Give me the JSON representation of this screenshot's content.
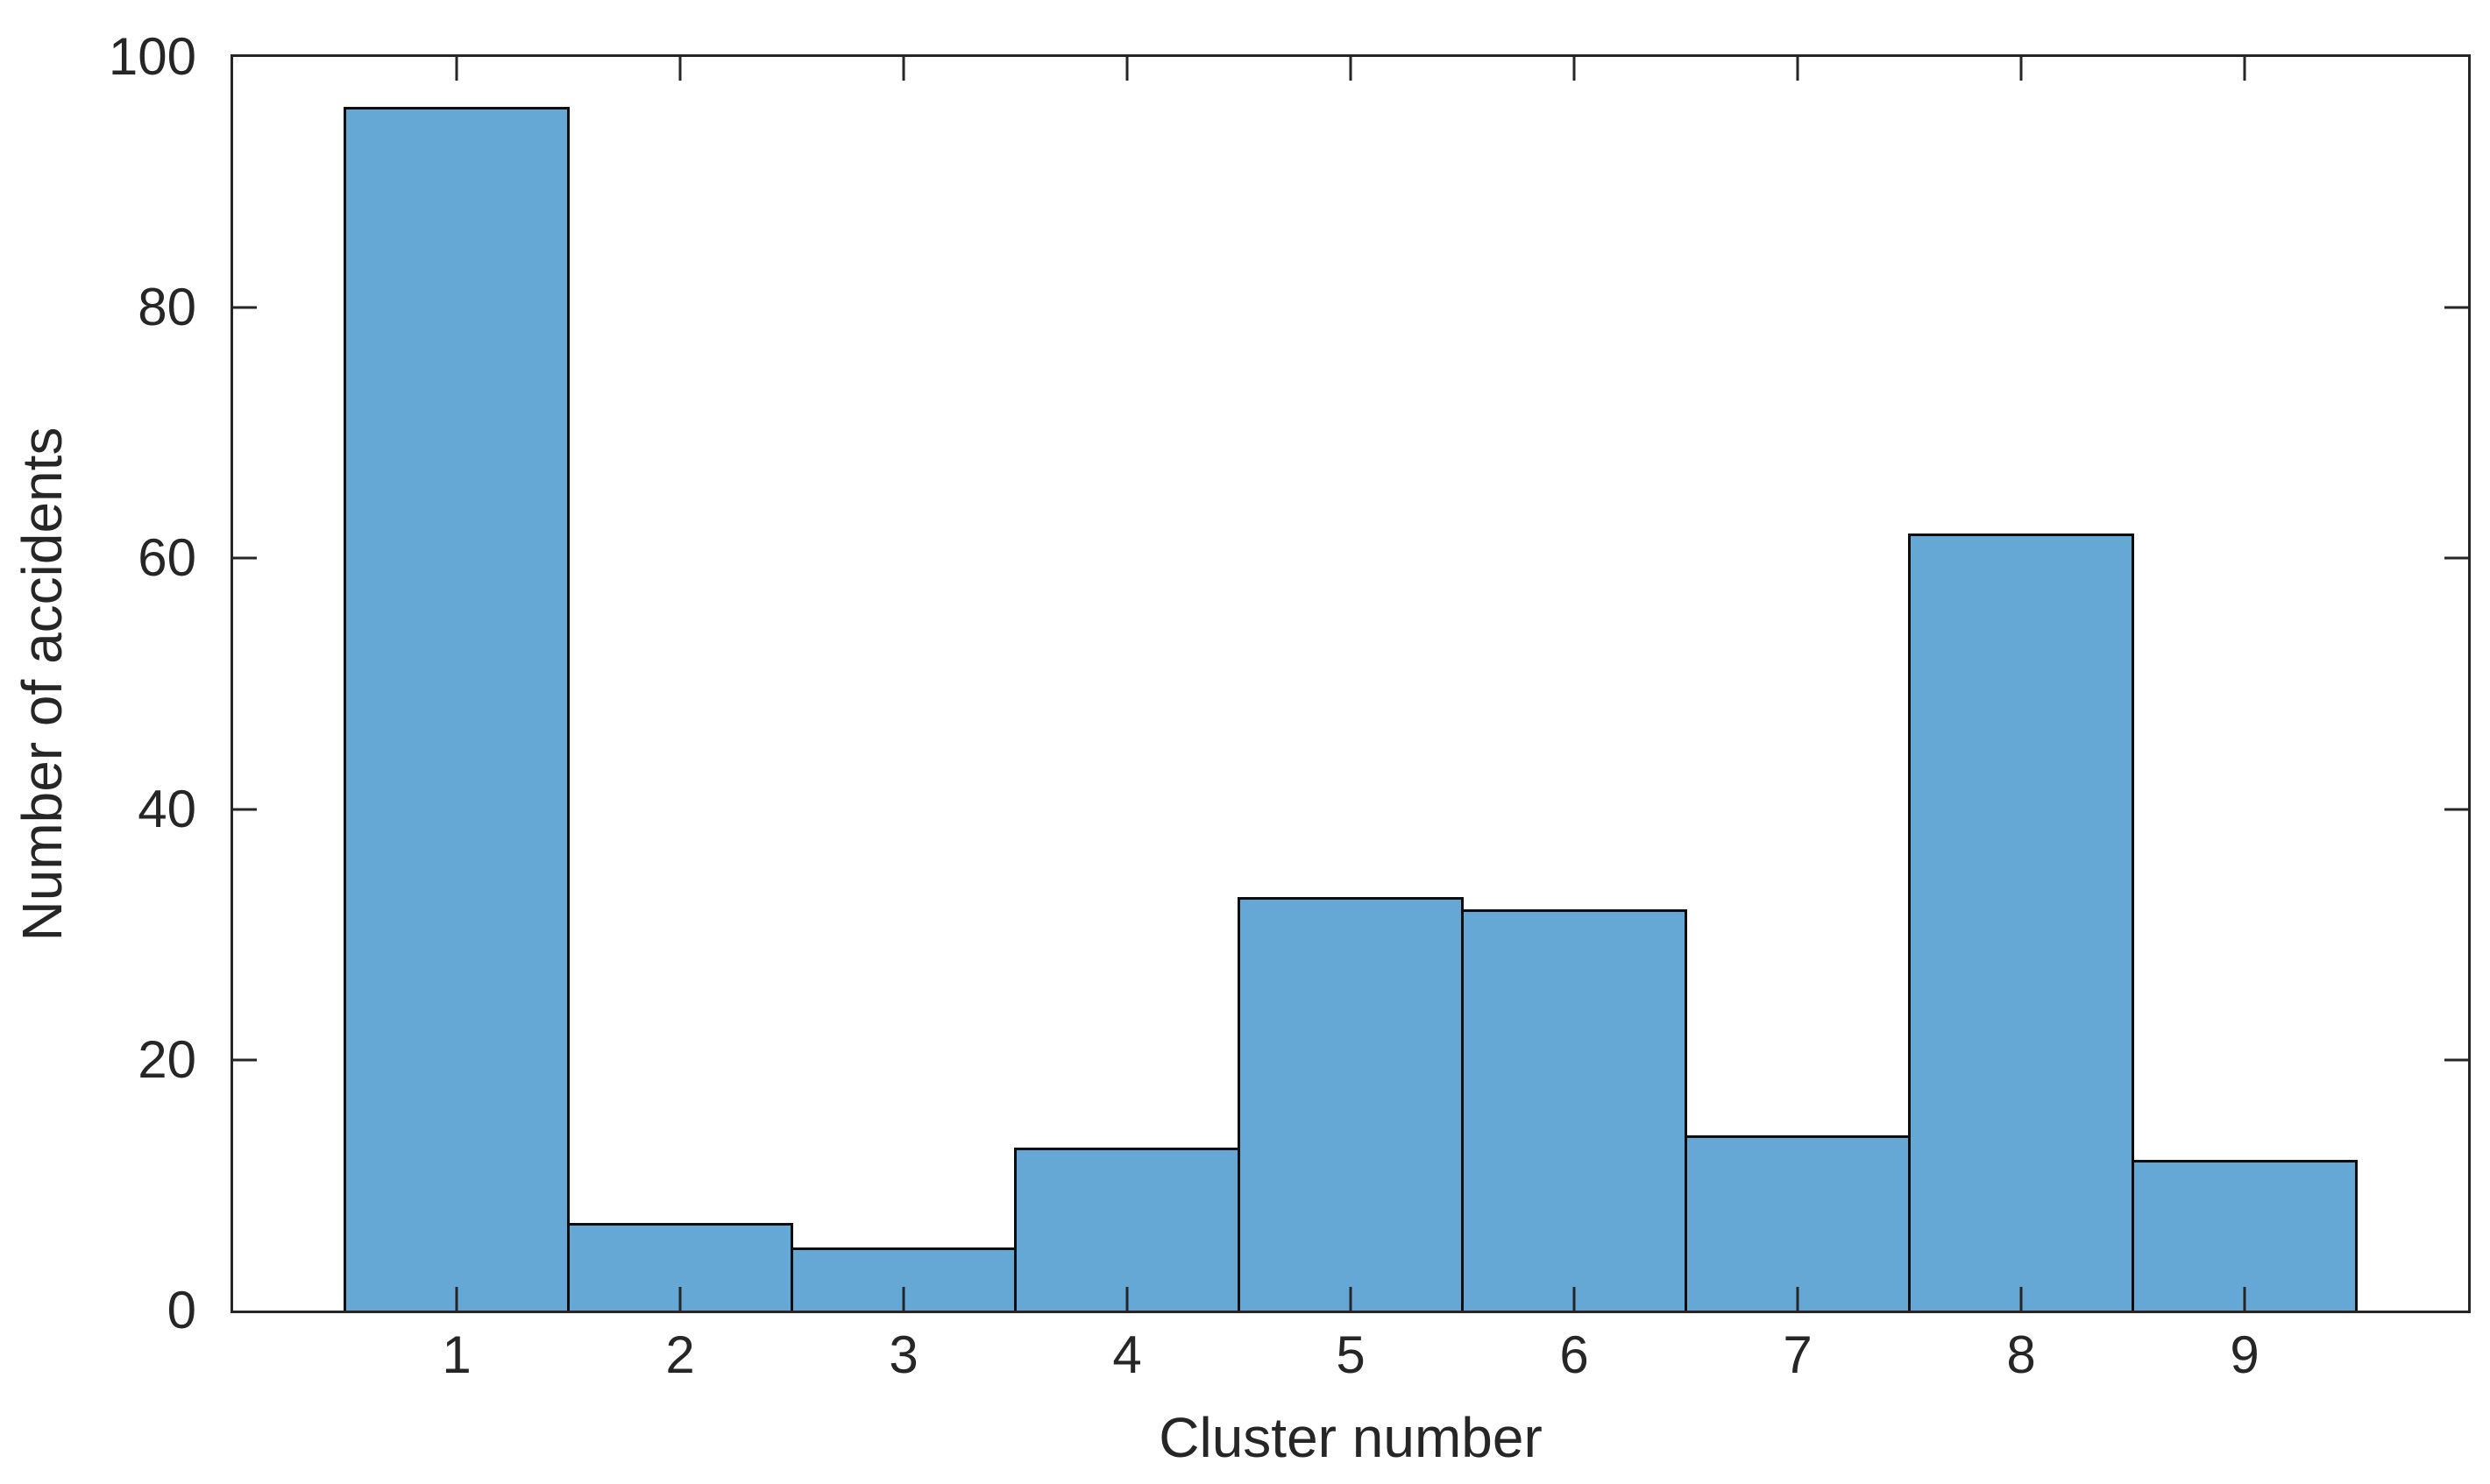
{
  "figure": {
    "background": "#ffffff"
  },
  "chart_data": {
    "type": "bar",
    "title": "",
    "xlabel": "Cluster number",
    "ylabel": "Number of accidents",
    "categories": [
      1,
      2,
      3,
      4,
      5,
      6,
      7,
      8,
      9
    ],
    "values": [
      96,
      7,
      5,
      13,
      33,
      32,
      14,
      62,
      12
    ],
    "xlim": [
      0,
      10
    ],
    "ylim": [
      0,
      100
    ],
    "xticks": [
      1,
      2,
      3,
      4,
      5,
      6,
      7,
      8,
      9
    ],
    "yticks": [
      0,
      20,
      40,
      60,
      80,
      100
    ],
    "bar_width": 1.0,
    "grid": false,
    "legend": null,
    "box": true,
    "tick_direction": "in",
    "bar_fill_color": "#65A8D6",
    "bar_edge_color": "#0d0d0d",
    "axis_color": "#262626",
    "text_color": "#262626"
  }
}
